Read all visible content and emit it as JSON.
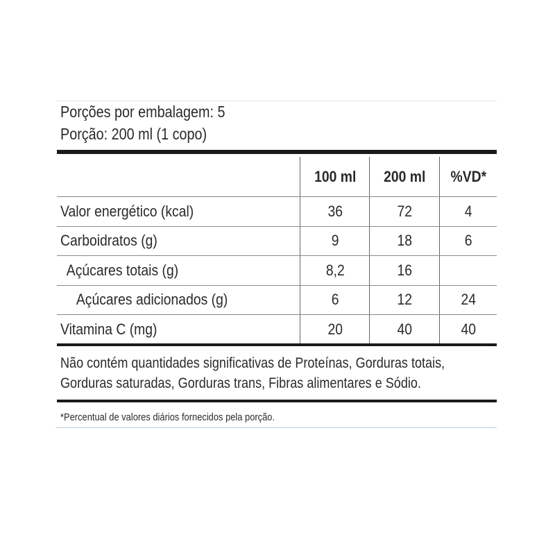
{
  "header": {
    "servings_per_package": "Porções por embalagem: 5",
    "serving_size": "Porção: 200 ml (1 copo)"
  },
  "table": {
    "columns": [
      "",
      "100 ml",
      "200 ml",
      "%VD*"
    ],
    "rows": [
      {
        "label": "Valor energético (kcal)",
        "v100": "36",
        "v200": "72",
        "vd": "4"
      },
      {
        "label": "Carboidratos (g)",
        "v100": "9",
        "v200": "18",
        "vd": "6"
      },
      {
        "label": "Açúcares totais (g)",
        "v100": "8,2",
        "v200": "16",
        "vd": ""
      },
      {
        "label": "Açúcares adicionados (g)",
        "v100": "6",
        "v200": "12",
        "vd": "24"
      },
      {
        "label": "Vitamina C (mg)",
        "v100": "20",
        "v200": "40",
        "vd": "40"
      }
    ]
  },
  "note": {
    "line1": "Não contém quantidades significativas de Proteínas, Gorduras totais,",
    "line2": "Gorduras saturadas, Gorduras trans, Fibras alimentares e Sódio."
  },
  "footnote": "*Percentual de valores diários fornecidos pela porção."
}
